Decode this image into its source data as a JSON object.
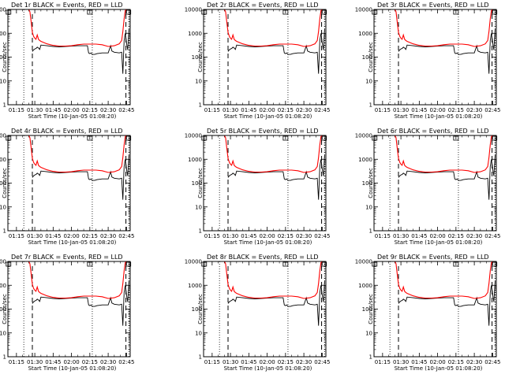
{
  "chart_data": [
    {
      "type": "line",
      "title": "Det 1r BLACK = Events, RED = LLD",
      "xlabel": "Start Time (10-Jan-05 01:08:20)",
      "ylabel": "Counts/sec"
    },
    {
      "type": "line",
      "title": "Det 2r BLACK = Events, RED = LLD",
      "xlabel": "Start Time (10-Jan-05 01:08:20)",
      "ylabel": "Counts/sec"
    },
    {
      "type": "line",
      "title": "Det 3r BLACK = Events, RED = LLD",
      "xlabel": "Start Time (10-Jan-05 01:08:20)",
      "ylabel": "Counts/sec"
    },
    {
      "type": "line",
      "title": "Det 4r BLACK = Events, RED = LLD",
      "xlabel": "Start Time (10-Jan-05 01:08:20)",
      "ylabel": "Counts/sec"
    },
    {
      "type": "line",
      "title": "Det 5r BLACK = Events, RED = LLD",
      "xlabel": "Start Time (10-Jan-05 01:08:20)",
      "ylabel": "Counts/sec"
    },
    {
      "type": "line",
      "title": "Det 6r BLACK = Events, RED = LLD",
      "xlabel": "Start Time (10-Jan-05 01:08:20)",
      "ylabel": "Counts/sec"
    },
    {
      "type": "line",
      "title": "Det 7r BLACK = Events, RED = LLD",
      "xlabel": "Start Time (10-Jan-05 01:08:20)",
      "ylabel": "Counts/sec"
    },
    {
      "type": "line",
      "title": "Det 8r BLACK = Events, RED = LLD",
      "xlabel": "Start Time (10-Jan-05 01:08:20)",
      "ylabel": "Counts/sec"
    },
    {
      "type": "line",
      "title": "Det 9r BLACK = Events, RED = LLD",
      "xlabel": "Start Time (10-Jan-05 01:08:20)",
      "ylabel": "Counts/sec"
    }
  ],
  "shared_axes": {
    "x_ticks": [
      "01:15",
      "01:30",
      "01:45",
      "02:00",
      "02:15",
      "02:30",
      "02:45"
    ],
    "x_tick_minutes": [
      0,
      15,
      30,
      45,
      60,
      75,
      90
    ],
    "xlim_minutes": [
      -7,
      93
    ],
    "y_ticks": [
      "1",
      "10",
      "100",
      "1000",
      "10000"
    ],
    "y_tick_values": [
      1,
      10,
      100,
      1000,
      10000
    ],
    "ylim": [
      1,
      10000
    ],
    "y_scale": "log",
    "dotted_lines_minutes": [
      6,
      62,
      92
    ],
    "dashed_lines_minutes": [
      13,
      89.5
    ],
    "box_marker_minutes": [
      -6.5,
      60,
      91.5
    ],
    "colors": {
      "events": "#000000",
      "lld": "#ff0000"
    }
  },
  "series_shapes": {
    "lld": {
      "minutes": [
        10,
        11,
        12,
        13,
        14,
        15,
        16,
        17,
        18,
        19,
        20,
        25,
        30,
        35,
        40,
        45,
        50,
        55,
        60,
        65,
        70,
        75,
        80,
        84,
        86,
        87,
        88,
        89,
        90,
        91,
        92,
        93
      ],
      "values": [
        10000,
        8000,
        3000,
        1100,
        750,
        620,
        560,
        850,
        560,
        500,
        460,
        360,
        310,
        290,
        290,
        300,
        330,
        350,
        350,
        350,
        330,
        280,
        300,
        360,
        500,
        1200,
        4000,
        9000,
        10000,
        10000,
        10000,
        10000
      ]
    },
    "events": {
      "minutes": [
        13,
        13.5,
        15,
        16,
        17,
        18,
        19,
        20,
        25,
        30,
        35,
        40,
        45,
        50,
        55,
        58,
        59,
        60,
        61,
        62,
        64,
        66,
        70,
        75,
        77,
        78,
        80,
        84,
        86,
        87,
        88,
        89,
        90,
        91,
        92
      ],
      "values": [
        170,
        190,
        220,
        230,
        260,
        240,
        210,
        320,
        300,
        280,
        270,
        280,
        290,
        300,
        300,
        300,
        150,
        140,
        150,
        130,
        130,
        140,
        150,
        150,
        300,
        180,
        160,
        150,
        160,
        20,
        500,
        1000,
        400,
        200,
        1500
      ]
    }
  }
}
